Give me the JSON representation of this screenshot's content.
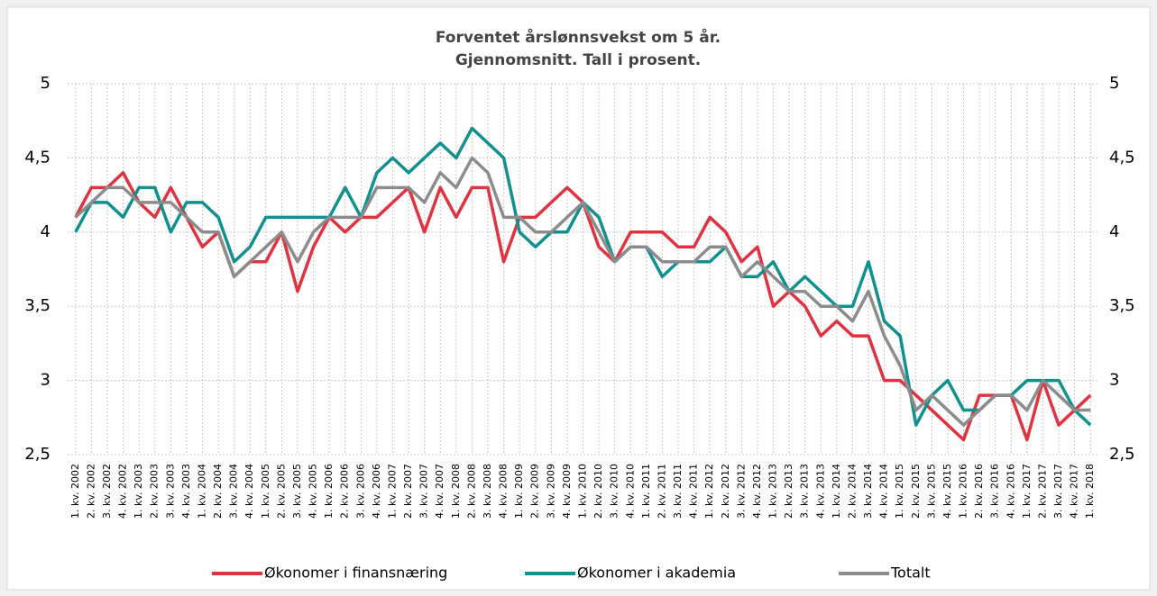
{
  "chart_data": {
    "type": "line",
    "title": "Forventet årslønnsvekst om 5 år.",
    "subtitle": "Gjennomsnitt. Tall i prosent.",
    "categories": [
      "1. kv. 2002",
      "2. kv. 2002",
      "3. kv. 2002",
      "4. kv. 2002",
      "1. kv. 2003",
      "2. kv. 2003",
      "3. kv. 2003",
      "4. kv. 2003",
      "1. kv. 2004",
      "2. kv. 2004",
      "3. kv. 2004",
      "4. kv. 2004",
      "1. kv. 2005",
      "2. kv. 2005",
      "3. kv. 2005",
      "4. kv. 2005",
      "1. kv. 2006",
      "2. kv. 2006",
      "3. kv. 2006",
      "4. kv. 2006",
      "1. kv. 2007",
      "2. kv. 2007",
      "3. kv. 2007",
      "4. kv. 2007",
      "1. kv. 2008",
      "2. kv. 2008",
      "3. kv. 2008",
      "4. kv. 2008",
      "1. kv. 2009",
      "2. kv. 2009",
      "3. kv. 2009",
      "4. kv. 2009",
      "1. kv. 2010",
      "2. kv. 2010",
      "3. kv. 2010",
      "4. kv. 2010",
      "1. kv. 2011",
      "2. kv. 2011",
      "3. kv. 2011",
      "4. kv. 2011",
      "1. kv. 2012",
      "2. kv. 2012",
      "3. kv. 2012",
      "4. kv. 2012",
      "1. kv. 2013",
      "2. kv. 2013",
      "3. kv. 2013",
      "4. kv. 2013",
      "1. kv. 2014",
      "2. kv. 2014",
      "3. kv. 2014",
      "4. kv. 2014",
      "1. kv. 2015",
      "2. kv. 2015",
      "3. kv. 2015",
      "4. kv. 2015",
      "1. kv. 2016",
      "2. kv. 2016",
      "3. kv. 2016",
      "4. kv. 2016",
      "1. kv. 2017",
      "2. kv. 2017",
      "3. kv. 2017",
      "4. kv. 2017",
      "1. kv. 2018"
    ],
    "series": [
      {
        "name": "Økonomer i finansnæring",
        "color": "#e2313f",
        "values": [
          4.1,
          4.3,
          4.3,
          4.4,
          4.2,
          4.1,
          4.3,
          4.1,
          3.9,
          4.0,
          3.7,
          3.8,
          3.8,
          4.0,
          3.6,
          3.9,
          4.1,
          4.0,
          4.1,
          4.1,
          4.2,
          4.3,
          4.0,
          4.3,
          4.1,
          4.3,
          4.3,
          3.8,
          4.1,
          4.1,
          4.2,
          4.3,
          4.2,
          3.9,
          3.8,
          4.0,
          4.0,
          4.0,
          3.9,
          3.9,
          4.1,
          4.0,
          3.8,
          3.9,
          3.5,
          3.6,
          3.5,
          3.3,
          3.4,
          3.3,
          3.3,
          3.0,
          3.0,
          2.9,
          2.8,
          2.7,
          2.6,
          2.9,
          2.9,
          2.9,
          2.6,
          3.0,
          2.7,
          2.8,
          2.9
        ]
      },
      {
        "name": "Økonomer i akademia",
        "color": "#10908f",
        "values": [
          4.0,
          4.2,
          4.2,
          4.1,
          4.3,
          4.3,
          4.0,
          4.2,
          4.2,
          4.1,
          3.8,
          3.9,
          4.1,
          4.1,
          4.1,
          4.1,
          4.1,
          4.3,
          4.1,
          4.4,
          4.5,
          4.4,
          4.5,
          4.6,
          4.5,
          4.7,
          4.6,
          4.5,
          4.0,
          3.9,
          4.0,
          4.0,
          4.2,
          4.1,
          3.8,
          3.9,
          3.9,
          3.7,
          3.8,
          3.8,
          3.8,
          3.9,
          3.7,
          3.7,
          3.8,
          3.6,
          3.7,
          3.6,
          3.5,
          3.5,
          3.8,
          3.4,
          3.3,
          2.7,
          2.9,
          3.0,
          2.8,
          2.8,
          2.9,
          2.9,
          3.0,
          3.0,
          3.0,
          2.8,
          2.7
        ]
      },
      {
        "name": "Totalt",
        "color": "#8c8c8c",
        "values": [
          4.1,
          4.2,
          4.3,
          4.3,
          4.2,
          4.2,
          4.2,
          4.1,
          4.0,
          4.0,
          3.7,
          3.8,
          3.9,
          4.0,
          3.8,
          4.0,
          4.1,
          4.1,
          4.1,
          4.3,
          4.3,
          4.3,
          4.2,
          4.4,
          4.3,
          4.5,
          4.4,
          4.1,
          4.1,
          4.0,
          4.0,
          4.1,
          4.2,
          4.0,
          3.8,
          3.9,
          3.9,
          3.8,
          3.8,
          3.8,
          3.9,
          3.9,
          3.7,
          3.8,
          3.7,
          3.6,
          3.6,
          3.5,
          3.5,
          3.4,
          3.6,
          3.3,
          3.1,
          2.8,
          2.9,
          2.8,
          2.7,
          2.8,
          2.9,
          2.9,
          2.8,
          3.0,
          2.9,
          2.8,
          2.8
        ]
      }
    ],
    "ylim": [
      2.5,
      5
    ],
    "yticks": [
      {
        "value": 2.5,
        "label": "2,5"
      },
      3,
      {
        "value": 3.5,
        "label": "3,5"
      },
      4,
      {
        "value": 4.5,
        "label": "4,5"
      },
      5
    ],
    "y2lim": [
      2.5,
      5
    ],
    "y2ticks": [
      {
        "value": 2.5,
        "label": "2,5"
      },
      3,
      {
        "value": 3.5,
        "label": "3,5"
      },
      4,
      {
        "value": 4.5,
        "label": "4,5"
      },
      5
    ],
    "grid": true,
    "legend": "bottom"
  }
}
